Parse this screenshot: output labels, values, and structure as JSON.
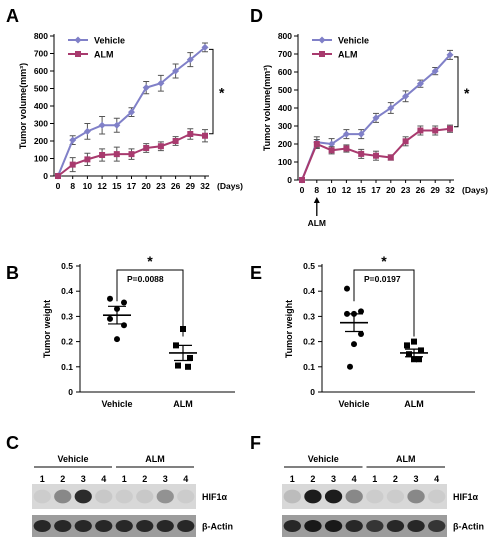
{
  "panel_letters": {
    "A": "A",
    "B": "B",
    "C": "C",
    "D": "D",
    "E": "E",
    "F": "F"
  },
  "colors": {
    "vehicle": "#8080c8",
    "alm": "#a83a6e",
    "axis": "#000000"
  },
  "chart_data": [
    {
      "panel": "A",
      "type": "line",
      "xlabel": "(Days)",
      "ylabel": "Tumor volume(mm³)",
      "x": [
        0,
        8,
        10,
        12,
        15,
        17,
        20,
        23,
        26,
        29,
        32
      ],
      "ylim": [
        0,
        800
      ],
      "yticks": [
        0,
        100,
        200,
        300,
        400,
        500,
        600,
        700,
        800
      ],
      "legend": "top-left",
      "significance": "*",
      "series": [
        {
          "name": "Vehicle",
          "values": [
            0,
            205,
            255,
            290,
            290,
            365,
            505,
            530,
            600,
            665,
            735
          ],
          "errors": [
            0,
            25,
            45,
            50,
            40,
            25,
            35,
            45,
            40,
            40,
            25
          ]
        },
        {
          "name": "ALM",
          "values": [
            0,
            65,
            95,
            120,
            125,
            125,
            160,
            170,
            200,
            240,
            230
          ],
          "errors": [
            0,
            40,
            35,
            35,
            40,
            30,
            25,
            25,
            25,
            30,
            35
          ]
        }
      ]
    },
    {
      "panel": "D",
      "type": "line",
      "xlabel": "(Days)",
      "ylabel": "Tumor volume(mm³)",
      "x": [
        0,
        8,
        10,
        12,
        15,
        17,
        20,
        23,
        26,
        29,
        32
      ],
      "ylim": [
        0,
        800
      ],
      "yticks": [
        0,
        100,
        200,
        300,
        400,
        500,
        600,
        700,
        800
      ],
      "legend": "top-left",
      "significance": "*",
      "annotation": "ALM",
      "series": [
        {
          "name": "Vehicle",
          "values": [
            0,
            210,
            200,
            255,
            255,
            345,
            400,
            465,
            535,
            605,
            695
          ],
          "errors": [
            0,
            30,
            30,
            25,
            25,
            25,
            30,
            30,
            20,
            20,
            25
          ]
        },
        {
          "name": "ALM",
          "values": [
            0,
            200,
            165,
            175,
            145,
            135,
            125,
            215,
            275,
            275,
            285
          ],
          "errors": [
            0,
            25,
            20,
            20,
            25,
            25,
            15,
            25,
            25,
            25,
            20
          ]
        }
      ]
    },
    {
      "panel": "B",
      "type": "scatter",
      "ylabel": "Tumor weight",
      "categories": [
        "Vehicle",
        "ALM"
      ],
      "ylim": [
        0,
        0.5
      ],
      "yticks": [
        0,
        0.1,
        0.2,
        0.3,
        0.4,
        0.5
      ],
      "p_value": "P=0.0088",
      "significance": "*",
      "groups": [
        {
          "name": "Vehicle",
          "mean": 0.305,
          "sem": 0.035,
          "points": [
            0.37,
            0.355,
            0.33,
            0.29,
            0.265,
            0.21
          ]
        },
        {
          "name": "ALM",
          "mean": 0.155,
          "sem": 0.03,
          "points": [
            0.25,
            0.185,
            0.135,
            0.105,
            0.1
          ]
        }
      ]
    },
    {
      "panel": "E",
      "type": "scatter",
      "ylabel": "Tumor weight",
      "categories": [
        "Vehicle",
        "ALM"
      ],
      "ylim": [
        0,
        0.5
      ],
      "yticks": [
        0,
        0.1,
        0.2,
        0.3,
        0.4,
        0.5
      ],
      "p_value": "P=0.0197",
      "significance": "*",
      "groups": [
        {
          "name": "Vehicle",
          "mean": 0.275,
          "sem": 0.035,
          "points": [
            0.41,
            0.32,
            0.31,
            0.31,
            0.23,
            0.19,
            0.1
          ]
        },
        {
          "name": "ALM",
          "mean": 0.155,
          "sem": 0.015,
          "points": [
            0.2,
            0.185,
            0.165,
            0.15,
            0.13,
            0.13
          ]
        }
      ]
    }
  ],
  "blots": [
    {
      "panel": "C",
      "groups": [
        "Vehicle",
        "ALM"
      ],
      "lanes": [
        "1",
        "2",
        "3",
        "4",
        "1",
        "2",
        "3",
        "4"
      ],
      "rows": [
        {
          "label": "HIF1α",
          "intensities": [
            0.1,
            0.55,
            0.9,
            0.15,
            0.1,
            0.15,
            0.5,
            0.1
          ]
        },
        {
          "label": "β-Actin",
          "intensities": [
            0.9,
            0.9,
            0.9,
            0.9,
            0.9,
            0.9,
            0.9,
            0.9
          ]
        }
      ]
    },
    {
      "panel": "F",
      "groups": [
        "Vehicle",
        "ALM"
      ],
      "lanes": [
        "1",
        "2",
        "3",
        "4",
        "1",
        "2",
        "3",
        "4"
      ],
      "rows": [
        {
          "label": "HIF1α",
          "intensities": [
            0.25,
            0.95,
            0.95,
            0.55,
            0.1,
            0.1,
            0.55,
            0.1
          ]
        },
        {
          "label": "β-Actin",
          "intensities": [
            0.9,
            0.95,
            0.95,
            0.9,
            0.85,
            0.9,
            0.9,
            0.85
          ]
        }
      ]
    }
  ]
}
